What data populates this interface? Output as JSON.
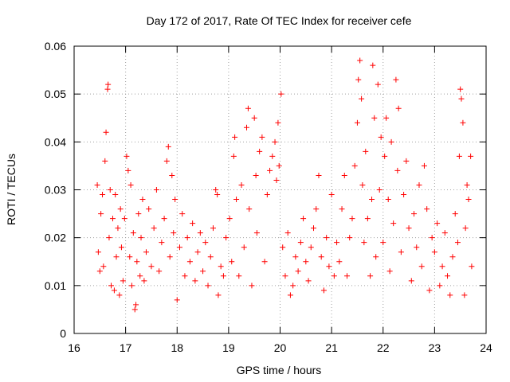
{
  "colors": {
    "marker": "#ff0000",
    "grid": "#a0a0a0",
    "axis": "#000000",
    "background": "#ffffff"
  },
  "chart_data": {
    "type": "scatter",
    "title": "Day 172 of 2017, Rate Of TEC Index for receiver cefe",
    "xlabel": "GPS time / hours",
    "ylabel": "ROTI / TECUs",
    "xlim": [
      16,
      24
    ],
    "ylim": [
      0,
      0.06
    ],
    "xticks": [
      16,
      17,
      18,
      19,
      20,
      21,
      22,
      23,
      24
    ],
    "yticks": [
      0,
      0.01,
      0.02,
      0.03,
      0.04,
      0.05,
      0.06
    ],
    "ytick_labels": [
      "0",
      "0.01",
      "0.02",
      "0.03",
      "0.04",
      "0.05",
      "0.06"
    ],
    "grid": true,
    "marker": "+",
    "series": [
      {
        "name": "ROTI",
        "points": [
          [
            16.45,
            0.031
          ],
          [
            16.47,
            0.017
          ],
          [
            16.5,
            0.013
          ],
          [
            16.52,
            0.025
          ],
          [
            16.55,
            0.029
          ],
          [
            16.57,
            0.014
          ],
          [
            16.6,
            0.036
          ],
          [
            16.62,
            0.042
          ],
          [
            16.65,
            0.051
          ],
          [
            16.66,
            0.052
          ],
          [
            16.68,
            0.02
          ],
          [
            16.7,
            0.03
          ],
          [
            16.72,
            0.01
          ],
          [
            16.75,
            0.024
          ],
          [
            16.78,
            0.009
          ],
          [
            16.8,
            0.029
          ],
          [
            16.82,
            0.016
          ],
          [
            16.85,
            0.022
          ],
          [
            16.88,
            0.008
          ],
          [
            16.9,
            0.026
          ],
          [
            16.92,
            0.018
          ],
          [
            16.95,
            0.011
          ],
          [
            16.98,
            0.024
          ],
          [
            17.02,
            0.037
          ],
          [
            17.05,
            0.034
          ],
          [
            17.08,
            0.016
          ],
          [
            17.1,
            0.031
          ],
          [
            17.12,
            0.01
          ],
          [
            17.15,
            0.021
          ],
          [
            17.18,
            0.005
          ],
          [
            17.2,
            0.006
          ],
          [
            17.22,
            0.015
          ],
          [
            17.25,
            0.025
          ],
          [
            17.28,
            0.012
          ],
          [
            17.3,
            0.02
          ],
          [
            17.33,
            0.028
          ],
          [
            17.36,
            0.011
          ],
          [
            17.4,
            0.017
          ],
          [
            17.45,
            0.026
          ],
          [
            17.5,
            0.014
          ],
          [
            17.55,
            0.022
          ],
          [
            17.6,
            0.03
          ],
          [
            17.65,
            0.013
          ],
          [
            17.7,
            0.019
          ],
          [
            17.75,
            0.024
          ],
          [
            17.8,
            0.036
          ],
          [
            17.83,
            0.039
          ],
          [
            17.86,
            0.016
          ],
          [
            17.9,
            0.033
          ],
          [
            17.93,
            0.021
          ],
          [
            17.96,
            0.028
          ],
          [
            18.0,
            0.007
          ],
          [
            18.05,
            0.018
          ],
          [
            18.1,
            0.025
          ],
          [
            18.15,
            0.012
          ],
          [
            18.2,
            0.02
          ],
          [
            18.25,
            0.015
          ],
          [
            18.3,
            0.023
          ],
          [
            18.35,
            0.011
          ],
          [
            18.4,
            0.017
          ],
          [
            18.45,
            0.021
          ],
          [
            18.5,
            0.013
          ],
          [
            18.55,
            0.019
          ],
          [
            18.6,
            0.01
          ],
          [
            18.65,
            0.016
          ],
          [
            18.7,
            0.022
          ],
          [
            18.75,
            0.03
          ],
          [
            18.78,
            0.029
          ],
          [
            18.8,
            0.008
          ],
          [
            18.85,
            0.014
          ],
          [
            18.9,
            0.012
          ],
          [
            18.95,
            0.02
          ],
          [
            19.02,
            0.024
          ],
          [
            19.06,
            0.015
          ],
          [
            19.1,
            0.037
          ],
          [
            19.12,
            0.041
          ],
          [
            19.15,
            0.028
          ],
          [
            19.2,
            0.012
          ],
          [
            19.25,
            0.031
          ],
          [
            19.3,
            0.018
          ],
          [
            19.35,
            0.043
          ],
          [
            19.38,
            0.047
          ],
          [
            19.4,
            0.026
          ],
          [
            19.45,
            0.01
          ],
          [
            19.5,
            0.045
          ],
          [
            19.53,
            0.033
          ],
          [
            19.55,
            0.021
          ],
          [
            19.6,
            0.038
          ],
          [
            19.65,
            0.041
          ],
          [
            19.7,
            0.015
          ],
          [
            19.75,
            0.029
          ],
          [
            19.8,
            0.034
          ],
          [
            19.85,
            0.037
          ],
          [
            19.9,
            0.04
          ],
          [
            19.93,
            0.032
          ],
          [
            19.96,
            0.044
          ],
          [
            19.98,
            0.035
          ],
          [
            20.02,
            0.05
          ],
          [
            20.05,
            0.018
          ],
          [
            20.1,
            0.012
          ],
          [
            20.15,
            0.021
          ],
          [
            20.2,
            0.008
          ],
          [
            20.25,
            0.01
          ],
          [
            20.3,
            0.016
          ],
          [
            20.35,
            0.013
          ],
          [
            20.4,
            0.019
          ],
          [
            20.45,
            0.024
          ],
          [
            20.5,
            0.015
          ],
          [
            20.55,
            0.011
          ],
          [
            20.6,
            0.018
          ],
          [
            20.65,
            0.022
          ],
          [
            20.7,
            0.026
          ],
          [
            20.75,
            0.033
          ],
          [
            20.8,
            0.016
          ],
          [
            20.85,
            0.009
          ],
          [
            20.9,
            0.02
          ],
          [
            20.95,
            0.014
          ],
          [
            21.0,
            0.029
          ],
          [
            21.05,
            0.012
          ],
          [
            21.1,
            0.019
          ],
          [
            21.15,
            0.015
          ],
          [
            21.2,
            0.026
          ],
          [
            21.25,
            0.033
          ],
          [
            21.3,
            0.012
          ],
          [
            21.35,
            0.02
          ],
          [
            21.4,
            0.024
          ],
          [
            21.45,
            0.035
          ],
          [
            21.5,
            0.044
          ],
          [
            21.52,
            0.053
          ],
          [
            21.55,
            0.057
          ],
          [
            21.58,
            0.049
          ],
          [
            21.6,
            0.031
          ],
          [
            21.63,
            0.019
          ],
          [
            21.66,
            0.038
          ],
          [
            21.7,
            0.024
          ],
          [
            21.75,
            0.012
          ],
          [
            21.78,
            0.028
          ],
          [
            21.8,
            0.056
          ],
          [
            21.83,
            0.045
          ],
          [
            21.86,
            0.016
          ],
          [
            21.9,
            0.052
          ],
          [
            21.93,
            0.03
          ],
          [
            21.96,
            0.041
          ],
          [
            22.0,
            0.019
          ],
          [
            22.03,
            0.037
          ],
          [
            22.06,
            0.045
          ],
          [
            22.1,
            0.028
          ],
          [
            22.13,
            0.013
          ],
          [
            22.16,
            0.04
          ],
          [
            22.2,
            0.023
          ],
          [
            22.25,
            0.053
          ],
          [
            22.28,
            0.034
          ],
          [
            22.3,
            0.047
          ],
          [
            22.35,
            0.017
          ],
          [
            22.4,
            0.029
          ],
          [
            22.45,
            0.036
          ],
          [
            22.5,
            0.022
          ],
          [
            22.55,
            0.011
          ],
          [
            22.6,
            0.025
          ],
          [
            22.65,
            0.018
          ],
          [
            22.7,
            0.031
          ],
          [
            22.75,
            0.014
          ],
          [
            22.8,
            0.035
          ],
          [
            22.85,
            0.026
          ],
          [
            22.9,
            0.009
          ],
          [
            22.95,
            0.02
          ],
          [
            23.0,
            0.017
          ],
          [
            23.05,
            0.023
          ],
          [
            23.1,
            0.01
          ],
          [
            23.15,
            0.014
          ],
          [
            23.2,
            0.021
          ],
          [
            23.25,
            0.012
          ],
          [
            23.3,
            0.008
          ],
          [
            23.35,
            0.016
          ],
          [
            23.4,
            0.025
          ],
          [
            23.45,
            0.019
          ],
          [
            23.48,
            0.037
          ],
          [
            23.5,
            0.051
          ],
          [
            23.52,
            0.049
          ],
          [
            23.55,
            0.044
          ],
          [
            23.58,
            0.008
          ],
          [
            23.6,
            0.022
          ],
          [
            23.63,
            0.031
          ],
          [
            23.66,
            0.028
          ],
          [
            23.7,
            0.037
          ],
          [
            23.72,
            0.014
          ]
        ]
      }
    ]
  }
}
